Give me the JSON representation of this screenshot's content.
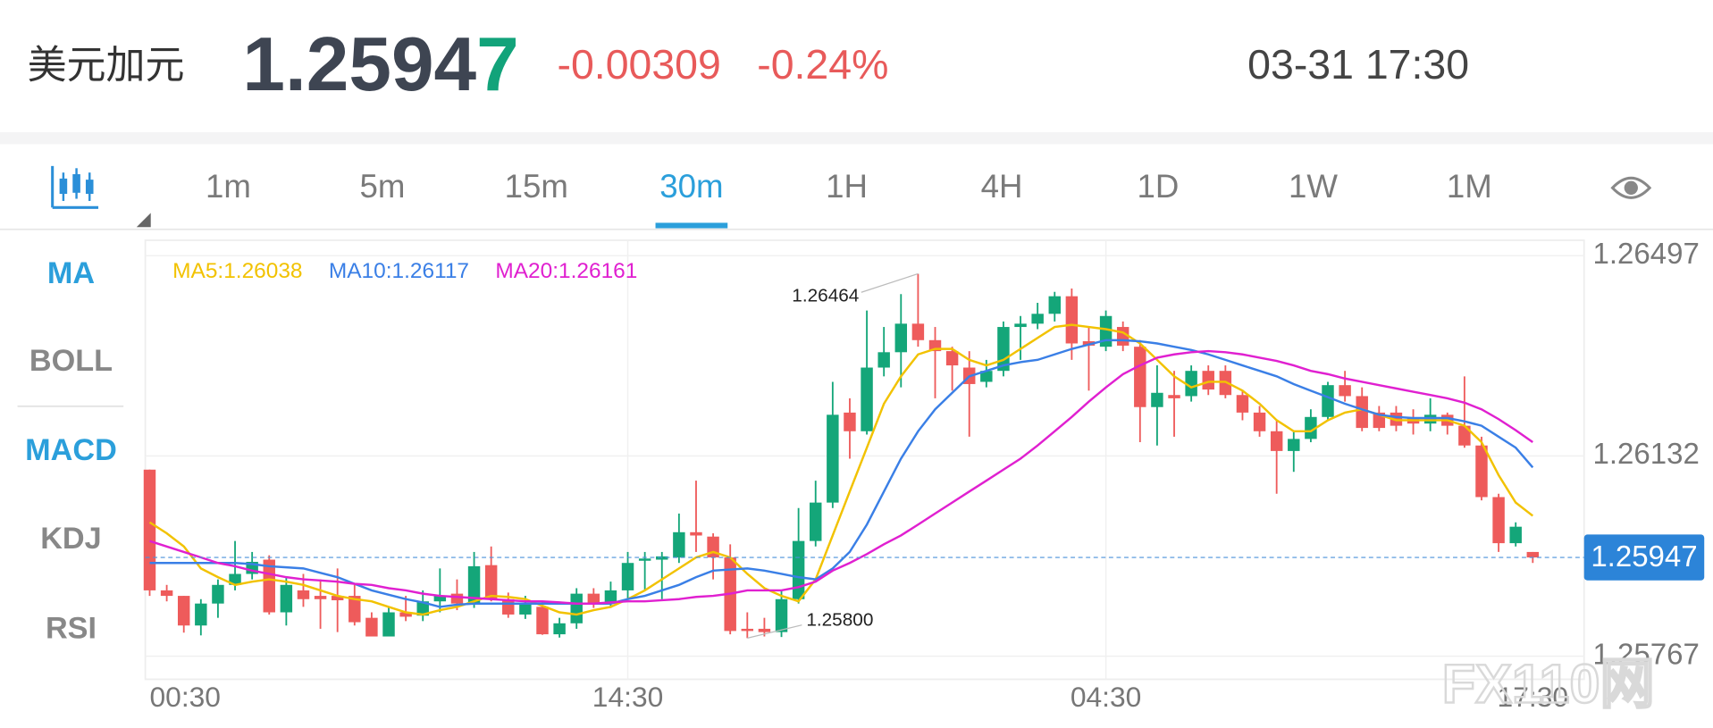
{
  "header": {
    "pair": "美元加元",
    "price_main": "1.2594",
    "price_last": "7",
    "change": "-0.00309",
    "change_pct": "-0.24%",
    "time": "03-31 17:30"
  },
  "tabs": [
    "1m",
    "5m",
    "15m",
    "30m",
    "1H",
    "4H",
    "1D",
    "1W",
    "1M"
  ],
  "selected_tab": 3,
  "indicators": [
    "MA",
    "BOLL",
    "MACD",
    "KDJ",
    "RSI"
  ],
  "active_indicators": [
    0,
    2
  ],
  "watermark": "FX110网",
  "chart_data": {
    "type": "candlestick",
    "up_color": "#14a679",
    "down_color": "#ee5b5b",
    "ylim": [
      1.25725,
      1.26525
    ],
    "yticks": [
      1.25767,
      1.26132,
      1.26497
    ],
    "grid": true,
    "current": 1.25947,
    "max_label": "1.26464",
    "min_label": "1.25800",
    "categories": [
      "00:30",
      null,
      null,
      null,
      null,
      null,
      null,
      null,
      null,
      null,
      null,
      null,
      null,
      null,
      null,
      null,
      null,
      null,
      null,
      null,
      null,
      null,
      null,
      null,
      null,
      null,
      null,
      null,
      "14:30",
      null,
      null,
      null,
      null,
      null,
      null,
      null,
      null,
      null,
      null,
      null,
      null,
      null,
      null,
      null,
      null,
      null,
      null,
      null,
      null,
      null,
      null,
      null,
      null,
      null,
      null,
      null,
      "04:30",
      null,
      null,
      null,
      null,
      null,
      null,
      null,
      null,
      null,
      null,
      null,
      null,
      null,
      null,
      null,
      null,
      null,
      null,
      null,
      null,
      null,
      null,
      null,
      null,
      "17:30"
    ],
    "candles": [
      [
        1.26107,
        1.26107,
        1.25877,
        1.25887
      ],
      [
        1.25887,
        1.25897,
        1.25867,
        1.25877
      ],
      [
        1.25877,
        1.25877,
        1.2581,
        1.25823
      ],
      [
        1.25823,
        1.25871,
        1.25805,
        1.25863
      ],
      [
        1.25863,
        1.25907,
        1.25837,
        1.25897
      ],
      [
        1.25897,
        1.25977,
        1.25887,
        1.25917
      ],
      [
        1.25917,
        1.25957,
        1.25907,
        1.25939
      ],
      [
        1.25943,
        1.25951,
        1.25843,
        1.25847
      ],
      [
        1.25847,
        1.25911,
        1.25823,
        1.25897
      ],
      [
        1.25887,
        1.25917,
        1.25857,
        1.25871
      ],
      [
        1.25877,
        1.25907,
        1.25817,
        1.25871
      ],
      [
        1.25877,
        1.25927,
        1.25811,
        1.25869
      ],
      [
        1.25877,
        1.25897,
        1.25823,
        1.25829
      ],
      [
        1.25837,
        1.25847,
        1.25808,
        1.25803
      ],
      [
        1.25803,
        1.25857,
        1.2581,
        1.25847
      ],
      [
        1.25847,
        1.25877,
        1.25831,
        1.25839
      ],
      [
        1.25841,
        1.25887,
        1.25831,
        1.25867
      ],
      [
        1.25867,
        1.25927,
        1.25847,
        1.25877
      ],
      [
        1.25881,
        1.25907,
        1.25851,
        1.25863
      ],
      [
        1.25863,
        1.25957,
        1.25855,
        1.25931
      ],
      [
        1.25933,
        1.25967,
        1.25867,
        1.25871
      ],
      [
        1.25871,
        1.25883,
        1.25837,
        1.25843
      ],
      [
        1.25843,
        1.25877,
        1.25835,
        1.25861
      ],
      [
        1.25857,
        1.25867,
        1.25806,
        1.25807
      ],
      [
        1.25807,
        1.25837,
        1.25801,
        1.25827
      ],
      [
        1.25827,
        1.25891,
        1.25817,
        1.25881
      ],
      [
        1.25881,
        1.25891,
        1.25855,
        1.25863
      ],
      [
        1.25863,
        1.25903,
        1.25855,
        1.25887
      ],
      [
        1.25887,
        1.25957,
        1.25871,
        1.25937
      ],
      [
        1.25941,
        1.25957,
        1.25887,
        1.25945
      ],
      [
        1.25943,
        1.25957,
        1.25871,
        1.25949
      ],
      [
        1.25947,
        1.26027,
        1.25937,
        1.25993
      ],
      [
        1.25993,
        1.26087,
        1.25957,
        1.25987
      ],
      [
        1.25985,
        1.25991,
        1.25907,
        1.25947
      ],
      [
        1.25947,
        1.25971,
        1.25807,
        1.25813
      ],
      [
        1.25817,
        1.25847,
        1.258,
        1.25813
      ],
      [
        1.25817,
        1.25837,
        1.25803,
        1.25811
      ],
      [
        1.25811,
        1.25887,
        1.25802,
        1.25871
      ],
      [
        1.25871,
        1.26037,
        1.25863,
        1.25977
      ],
      [
        1.25977,
        1.26087,
        1.25967,
        1.26047
      ],
      [
        1.26047,
        1.26267,
        1.26037,
        1.26207
      ],
      [
        1.26211,
        1.26237,
        1.26127,
        1.26177
      ],
      [
        1.26177,
        1.26397,
        1.26171,
        1.26293
      ],
      [
        1.26293,
        1.26367,
        1.26277,
        1.26321
      ],
      [
        1.26321,
        1.26427,
        1.26257,
        1.26373
      ],
      [
        1.26373,
        1.26464,
        1.26331,
        1.26343
      ],
      [
        1.26343,
        1.26367,
        1.26237,
        1.26323
      ],
      [
        1.26323,
        1.26331,
        1.26251,
        1.26297
      ],
      [
        1.26293,
        1.26323,
        1.26167,
        1.26263
      ],
      [
        1.26267,
        1.26307,
        1.26257,
        1.26287
      ],
      [
        1.26287,
        1.26377,
        1.26277,
        1.26367
      ],
      [
        1.26367,
        1.26387,
        1.26307,
        1.26373
      ],
      [
        1.26373,
        1.26411,
        1.26363,
        1.26391
      ],
      [
        1.26391,
        1.26431,
        1.26377,
        1.26423
      ],
      [
        1.26423,
        1.26437,
        1.26307,
        1.26337
      ],
      [
        1.26341,
        1.26367,
        1.26251,
        1.26333
      ],
      [
        1.26331,
        1.26397,
        1.26323,
        1.26387
      ],
      [
        1.26367,
        1.26377,
        1.26323,
        1.26333
      ],
      [
        1.26331,
        1.26343,
        1.26157,
        1.26221
      ],
      [
        1.26221,
        1.26297,
        1.26151,
        1.26247
      ],
      [
        1.26243,
        1.26287,
        1.26167,
        1.26237
      ],
      [
        1.26241,
        1.26297,
        1.26231,
        1.26287
      ],
      [
        1.26287,
        1.26297,
        1.26243,
        1.26253
      ],
      [
        1.26287,
        1.26297,
        1.26237,
        1.26243
      ],
      [
        1.26243,
        1.26251,
        1.26197,
        1.26211
      ],
      [
        1.26211,
        1.26223,
        1.26167,
        1.26177
      ],
      [
        1.26177,
        1.26197,
        1.26063,
        1.26141
      ],
      [
        1.26141,
        1.26177,
        1.26103,
        1.26163
      ],
      [
        1.26163,
        1.26217,
        1.26157,
        1.26203
      ],
      [
        1.26203,
        1.26267,
        1.26197,
        1.26261
      ],
      [
        1.26261,
        1.26287,
        1.26231,
        1.26241
      ],
      [
        1.26241,
        1.26257,
        1.26177,
        1.26183
      ],
      [
        1.26211,
        1.26223,
        1.26177,
        1.26183
      ],
      [
        1.26211,
        1.26223,
        1.26177,
        1.26187
      ],
      [
        1.26201,
        1.26217,
        1.26171,
        1.26191
      ],
      [
        1.26191,
        1.26237,
        1.26177,
        1.26207
      ],
      [
        1.26207,
        1.26211,
        1.26171,
        1.26187
      ],
      [
        1.26187,
        1.26277,
        1.26147,
        1.26151
      ],
      [
        1.26151,
        1.26167,
        1.26051,
        1.26057
      ],
      [
        1.26057,
        1.26063,
        1.25957,
        1.25973
      ],
      [
        1.25973,
        1.26011,
        1.25967,
        1.26003
      ],
      [
        1.25957,
        1.25957,
        1.25937,
        1.25947
      ]
    ],
    "series": [
      {
        "name": "MA5:1.26038",
        "color": "#f2c200",
        "values": [
          1.26011,
          1.25991,
          1.25967,
          1.25927,
          1.25911,
          1.25897,
          1.25903,
          1.25907,
          1.25903,
          1.25897,
          1.25887,
          1.25877,
          1.25871,
          1.25867,
          1.25857,
          1.25847,
          1.25843,
          1.25851,
          1.25857,
          1.25867,
          1.25877,
          1.25875,
          1.25871,
          1.25859,
          1.25847,
          1.25843,
          1.25851,
          1.25857,
          1.25871,
          1.25887,
          1.25907,
          1.25927,
          1.25947,
          1.25957,
          1.25947,
          1.25917,
          1.25891,
          1.25877,
          1.25867,
          1.25907,
          1.25987,
          1.26067,
          1.26147,
          1.26227,
          1.26277,
          1.26317,
          1.26327,
          1.26327,
          1.26307,
          1.26297,
          1.26307,
          1.26327,
          1.26347,
          1.26367,
          1.26371,
          1.26367,
          1.26363,
          1.26357,
          1.26337,
          1.26307,
          1.26277,
          1.26257,
          1.26267,
          1.26267,
          1.26251,
          1.26227,
          1.26197,
          1.26177,
          1.26177,
          1.26197,
          1.26211,
          1.26217,
          1.26207,
          1.26197,
          1.26197,
          1.26197,
          1.26197,
          1.26187,
          1.26157,
          1.26097,
          1.26047,
          1.26023
        ]
      },
      {
        "name": "MA10:1.26117",
        "color": "#3a7fe6",
        "values": [
          1.25937,
          1.25937,
          1.25937,
          1.25937,
          1.25937,
          1.25937,
          1.25935,
          1.25931,
          1.25929,
          1.25927,
          1.25919,
          1.25911,
          1.25899,
          1.25887,
          1.25879,
          1.25871,
          1.25865,
          1.25857,
          1.25861,
          1.25863,
          1.25863,
          1.25863,
          1.25863,
          1.25863,
          1.25863,
          1.25863,
          1.25863,
          1.25863,
          1.25871,
          1.25877,
          1.25887,
          1.25897,
          1.25911,
          1.25923,
          1.25925,
          1.25927,
          1.25923,
          1.25917,
          1.25911,
          1.25907,
          1.25927,
          1.25957,
          1.26007,
          1.26067,
          1.26127,
          1.26177,
          1.26217,
          1.26247,
          1.26277,
          1.26287,
          1.26297,
          1.26303,
          1.26307,
          1.26317,
          1.26327,
          1.26335,
          1.26343,
          1.26343,
          1.26341,
          1.26337,
          1.26331,
          1.26325,
          1.26317,
          1.26307,
          1.26297,
          1.26287,
          1.26277,
          1.26263,
          1.26251,
          1.26239,
          1.26227,
          1.26217,
          1.26207,
          1.26203,
          1.26201,
          1.26201,
          1.26201,
          1.26195,
          1.26187,
          1.26167,
          1.26147,
          1.26111
        ]
      },
      {
        "name": "MA20:1.26161",
        "color": "#e020d0",
        "values": [
          1.25977,
          1.25967,
          1.25957,
          1.25947,
          1.25937,
          1.25931,
          1.25923,
          1.25917,
          1.25911,
          1.25907,
          1.25905,
          1.25903,
          1.25899,
          1.25897,
          1.25891,
          1.25887,
          1.25881,
          1.25877,
          1.25875,
          1.25873,
          1.25871,
          1.25869,
          1.25867,
          1.25867,
          1.25865,
          1.25863,
          1.25863,
          1.25865,
          1.25867,
          1.25867,
          1.25869,
          1.25871,
          1.25875,
          1.25877,
          1.25881,
          1.25887,
          1.25887,
          1.25887,
          1.25893,
          1.25903,
          1.25923,
          1.25937,
          1.25953,
          1.25971,
          1.25987,
          1.26007,
          1.26027,
          1.26047,
          1.26067,
          1.26087,
          1.26107,
          1.26127,
          1.26151,
          1.26177,
          1.26203,
          1.26231,
          1.26257,
          1.26281,
          1.26297,
          1.26311,
          1.26317,
          1.26321,
          1.26323,
          1.26321,
          1.26317,
          1.26311,
          1.26305,
          1.26297,
          1.26287,
          1.26281,
          1.26273,
          1.26267,
          1.26261,
          1.26255,
          1.26249,
          1.26243,
          1.26237,
          1.26229,
          1.26217,
          1.26199,
          1.26179,
          1.26157
        ]
      }
    ]
  }
}
